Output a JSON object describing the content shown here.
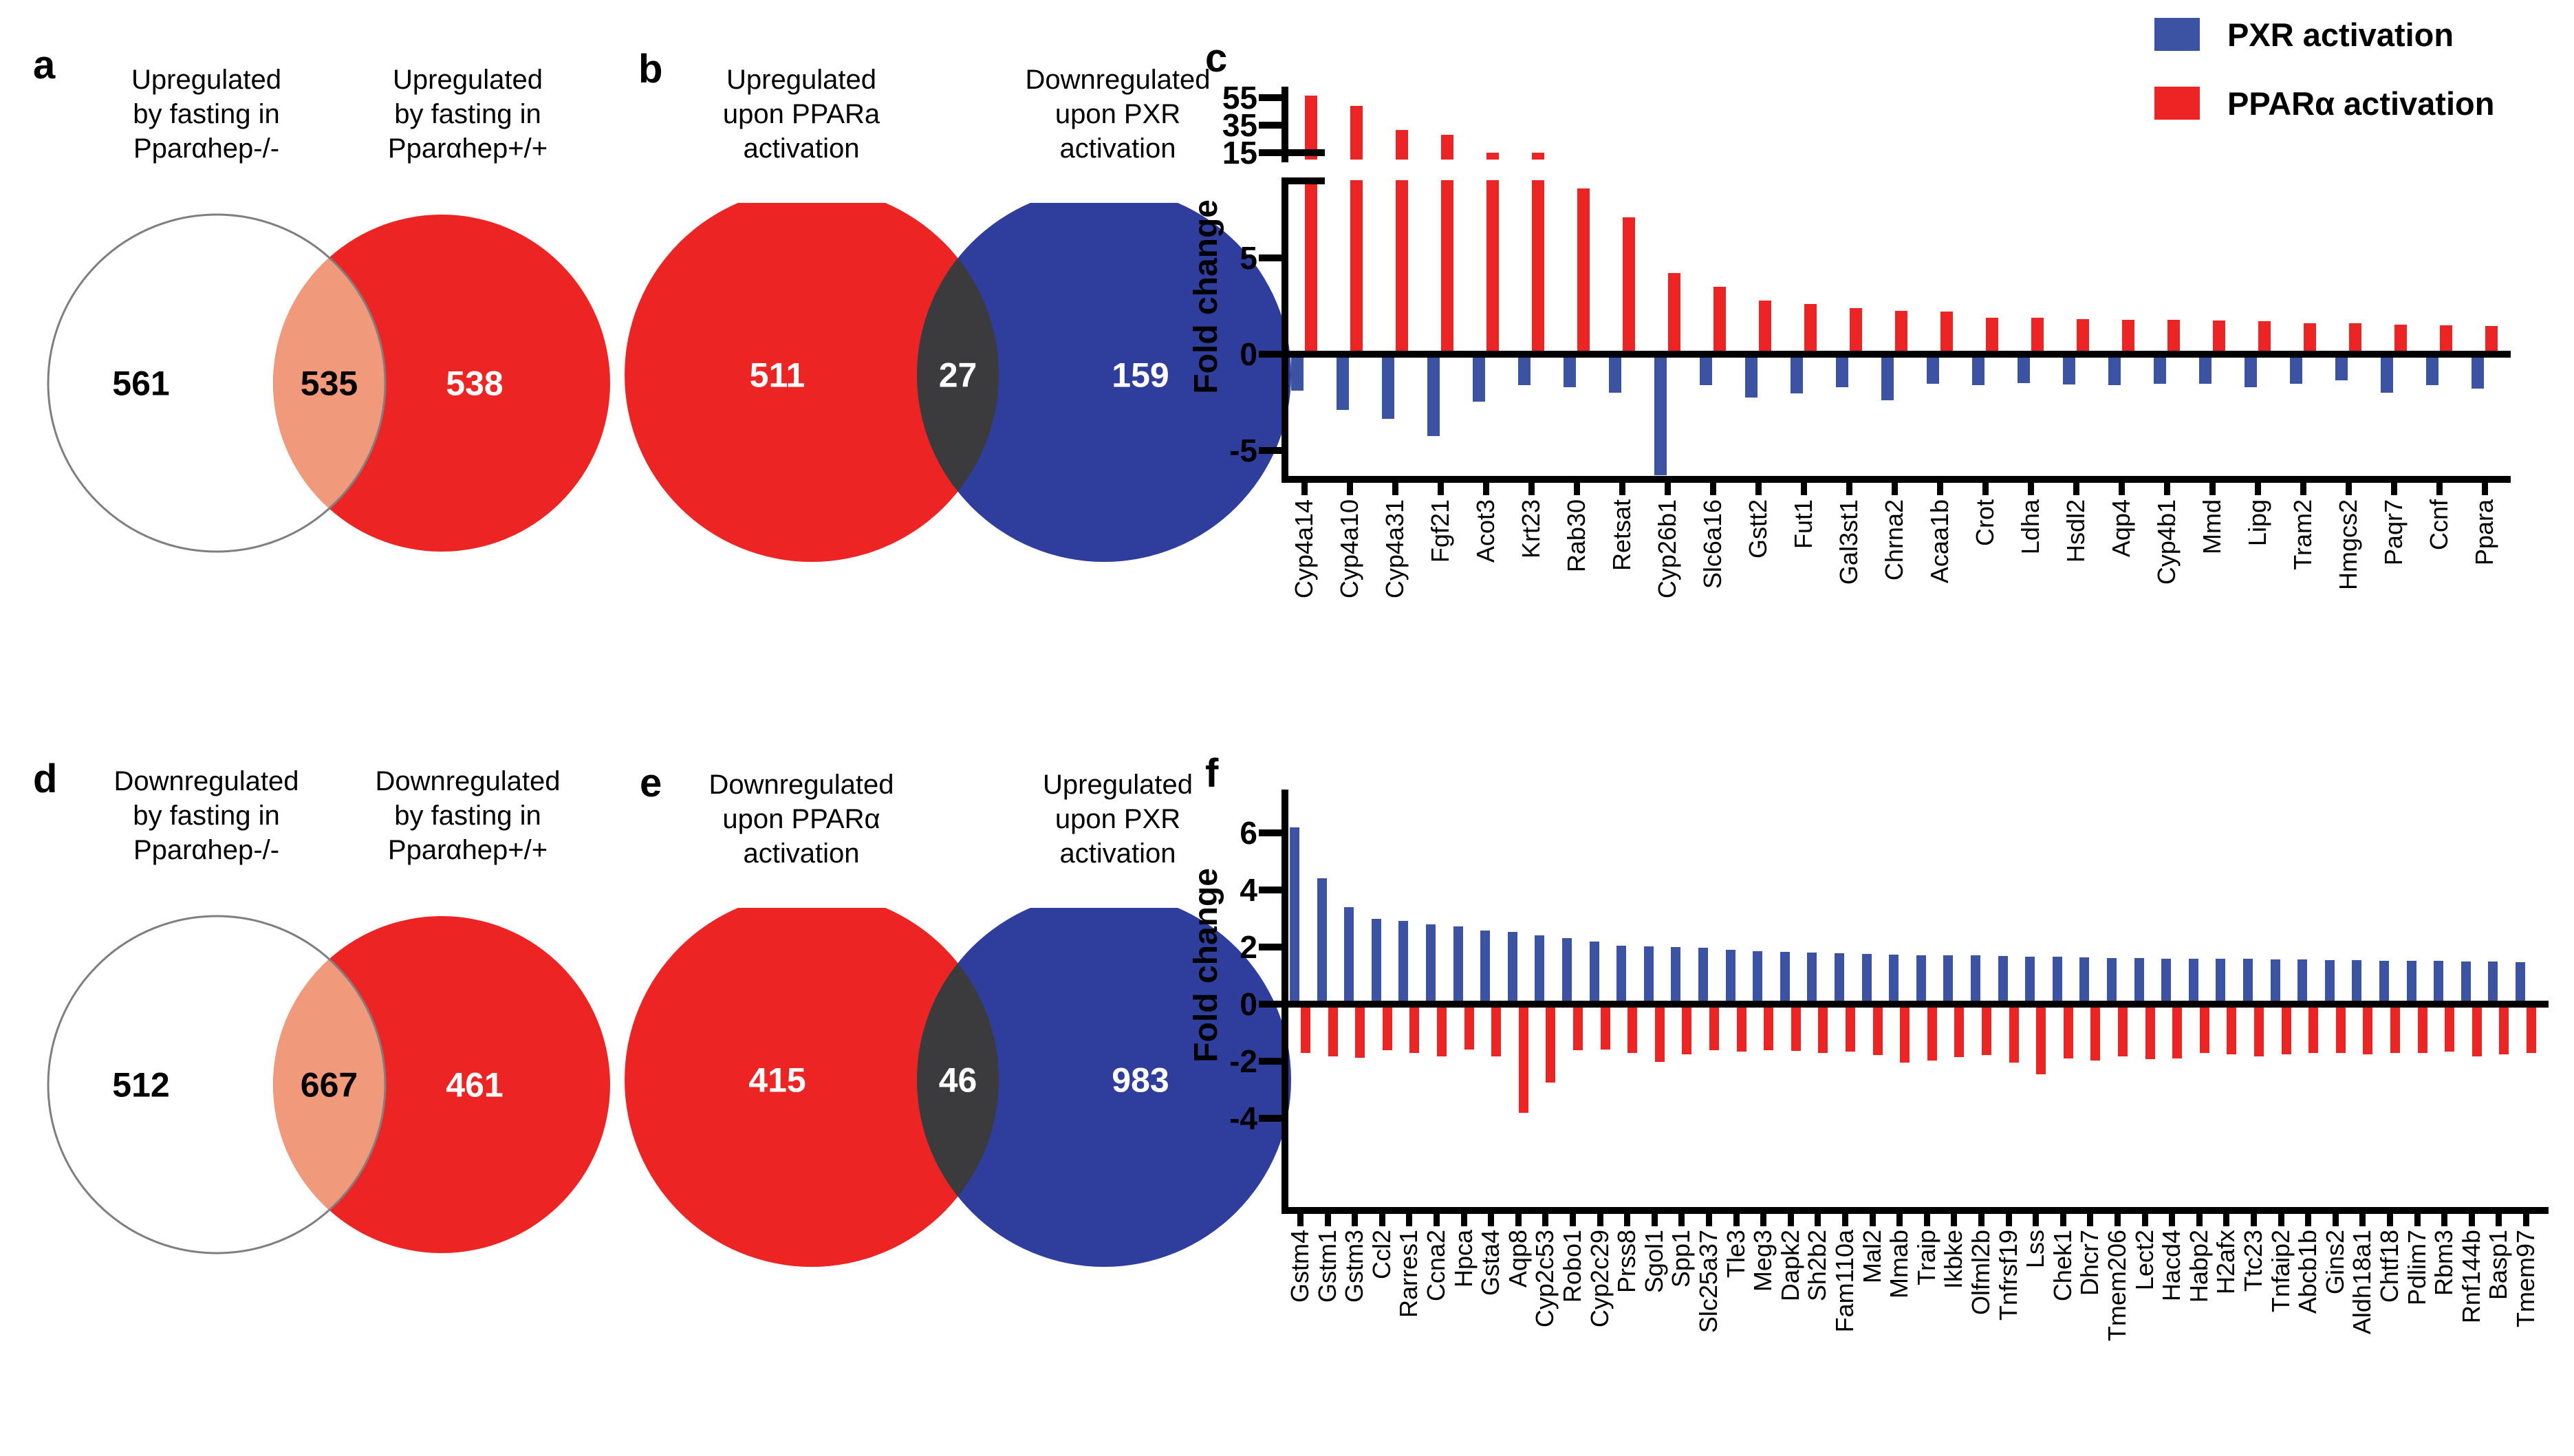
{
  "legend": {
    "items": [
      {
        "label": "PXR activation",
        "color": "#3C53A4"
      },
      {
        "label": "PPARα activation",
        "color": "#EC2424"
      }
    ]
  },
  "venn_diagrams": [
    {
      "panel": "a",
      "left": {
        "title_lines": [
          "Upregulated",
          "by fasting in",
          "Pparαhep-/-"
        ],
        "count": "561",
        "fill": "#FFFFFF",
        "stroke": "#7F7F7F",
        "count_color": "#000000"
      },
      "right": {
        "title_lines": [
          "Upregulated",
          "by fasting in",
          "Pparαhep+/+"
        ],
        "count": "538",
        "fill": "#EC2424",
        "count_color": "#FFFFFF"
      },
      "overlap": {
        "count": "535",
        "fill": "#F1997B",
        "count_color": "#000000"
      }
    },
    {
      "panel": "b",
      "left": {
        "title_lines": [
          "Upregulated",
          "upon PPARa",
          "activation"
        ],
        "count": "511",
        "fill": "#EC2424",
        "count_color": "#FFFFFF"
      },
      "right": {
        "title_lines": [
          "Downregulated",
          "upon PXR",
          "activation"
        ],
        "count": "159",
        "fill": "#2F3E9C",
        "count_color": "#FFFFFF"
      },
      "overlap": {
        "count": "27",
        "fill": "#3B3B3D",
        "count_color": "#FFFFFF"
      }
    },
    {
      "panel": "d",
      "left": {
        "title_lines": [
          "Downregulated",
          "by fasting in",
          "Pparαhep-/-"
        ],
        "count": "512",
        "fill": "#FFFFFF",
        "stroke": "#7F7F7F",
        "count_color": "#000000"
      },
      "right": {
        "title_lines": [
          "Downregulated",
          "by fasting in",
          "Pparαhep+/+"
        ],
        "count": "461",
        "fill": "#EC2424",
        "count_color": "#FFFFFF"
      },
      "overlap": {
        "count": "667",
        "fill": "#F1997B",
        "count_color": "#000000"
      }
    },
    {
      "panel": "e",
      "left": {
        "title_lines": [
          "Downregulated",
          "upon PPARα",
          "activation"
        ],
        "count": "415",
        "fill": "#EC2424",
        "count_color": "#FFFFFF"
      },
      "right": {
        "title_lines": [
          "Upregulated",
          "upon PXR",
          "activation"
        ],
        "count": "983",
        "fill": "#2F3E9C",
        "count_color": "#FFFFFF"
      },
      "overlap": {
        "count": "46",
        "fill": "#3B3B3D",
        "count_color": "#FFFFFF"
      }
    }
  ],
  "chart_data": [
    {
      "type": "bar",
      "panel": "c",
      "title": "",
      "xlabel": "",
      "ylabel": "Fold change",
      "grid": false,
      "legend_position": "top-right",
      "axis_break": {
        "upper_ticks": [
          55,
          35,
          15
        ],
        "upper_range": [
          15,
          58
        ],
        "lower_ticks": [
          5,
          0,
          -5
        ],
        "lower_range": [
          -6.5,
          9
        ]
      },
      "categories": [
        "Cyp4a14",
        "Cyp4a10",
        "Cyp4a31",
        "Fgf21",
        "Acot3",
        "Krt23",
        "Rab30",
        "Retsat",
        "Cyp26b1",
        "Slc6a16",
        "Gstt2",
        "Fut1",
        "Gal3st1",
        "Chrna2",
        "Acaa1b",
        "Crot",
        "Ldha",
        "Hsdl2",
        "Aqp4",
        "Cyp4b1",
        "Mmd",
        "Lipg",
        "Tram2",
        "Hmgcs2",
        "Paqr7",
        "Ccnf",
        "Ppara"
      ],
      "series": [
        {
          "name": "PPARα activation",
          "color": "#EC2424",
          "values": [
            56.5,
            49,
            31.5,
            28,
            15.2,
            15.1,
            8.6,
            7.1,
            4.2,
            3.5,
            2.8,
            2.6,
            2.4,
            2.25,
            2.2,
            1.9,
            1.88,
            1.82,
            1.8,
            1.78,
            1.75,
            1.7,
            1.62,
            1.6,
            1.55,
            1.5,
            1.45
          ]
        },
        {
          "name": "PXR activation",
          "color": "#3C53A4",
          "values": [
            -1.9,
            -2.9,
            -3.35,
            -4.25,
            -2.45,
            -1.6,
            -1.7,
            -2.0,
            -6.3,
            -1.6,
            -2.25,
            -2.05,
            -1.72,
            -2.4,
            -1.55,
            -1.6,
            -1.5,
            -1.56,
            -1.6,
            -1.55,
            -1.55,
            -1.7,
            -1.55,
            -1.35,
            -2.0,
            -1.62,
            -1.8
          ]
        }
      ]
    },
    {
      "type": "bar",
      "panel": "f",
      "title": "",
      "xlabel": "",
      "ylabel": "Fold change",
      "grid": false,
      "legend_position": "top-right",
      "yticks": [
        6,
        4,
        2,
        0,
        -2,
        -4
      ],
      "ylim": [
        -7.2,
        7.5
      ],
      "categories": [
        "Gstm4",
        "Gstm1",
        "Gstm3",
        "Ccl2",
        "Rarres1",
        "Ccna2",
        "Hpca",
        "Gsta4",
        "Aqp8",
        "Cyp2c53",
        "Robo1",
        "Cyp2c29",
        "Prss8",
        "Sgol1",
        "Spp1",
        "Slc25a37",
        "Tle3",
        "Meg3",
        "Dapk2",
        "Sh2b2",
        "Fam110a",
        "Mal2",
        "Mmab",
        "Traip",
        "Ikbke",
        "Olfml2b",
        "Tnfrsf19",
        "Lss",
        "Chek1",
        "Dhcr7",
        "Tmem206",
        "Lect2",
        "Hacd4",
        "Habp2",
        "H2afx",
        "Ttc23",
        "Tnfaip2",
        "Abcb1b",
        "Gins2",
        "Aldh18a1",
        "Chtf18",
        "Pdlim7",
        "Rbm3",
        "Rnf144b",
        "Basp1",
        "Tmem97"
      ],
      "series": [
        {
          "name": "PXR activation",
          "color": "#3C53A4",
          "values": [
            6.2,
            4.4,
            3.4,
            3.0,
            2.92,
            2.8,
            2.72,
            2.58,
            2.52,
            2.42,
            2.32,
            2.2,
            2.06,
            2.02,
            2.0,
            1.97,
            1.9,
            1.86,
            1.82,
            1.8,
            1.78,
            1.76,
            1.74,
            1.72,
            1.7,
            1.7,
            1.68,
            1.66,
            1.66,
            1.64,
            1.62,
            1.62,
            1.6,
            1.6,
            1.58,
            1.58,
            1.56,
            1.56,
            1.54,
            1.54,
            1.52,
            1.52,
            1.52,
            1.5,
            1.5,
            1.48
          ]
        },
        {
          "name": "PPARα activation",
          "color": "#EC2424",
          "values": [
            -1.72,
            -1.82,
            -1.88,
            -1.62,
            -1.7,
            -1.82,
            -1.58,
            -1.82,
            -3.8,
            -2.75,
            -1.62,
            -1.58,
            -1.72,
            -2.02,
            -1.76,
            -1.62,
            -1.66,
            -1.62,
            -1.65,
            -1.7,
            -1.66,
            -1.78,
            -2.05,
            -1.98,
            -1.85,
            -1.78,
            -2.05,
            -2.45,
            -1.9,
            -1.98,
            -1.84,
            -1.92,
            -1.9,
            -1.72,
            -1.76,
            -1.82,
            -1.76,
            -1.72,
            -1.7,
            -1.76,
            -1.72,
            -1.7,
            -1.66,
            -1.82,
            -1.76,
            -1.72
          ]
        }
      ]
    }
  ]
}
